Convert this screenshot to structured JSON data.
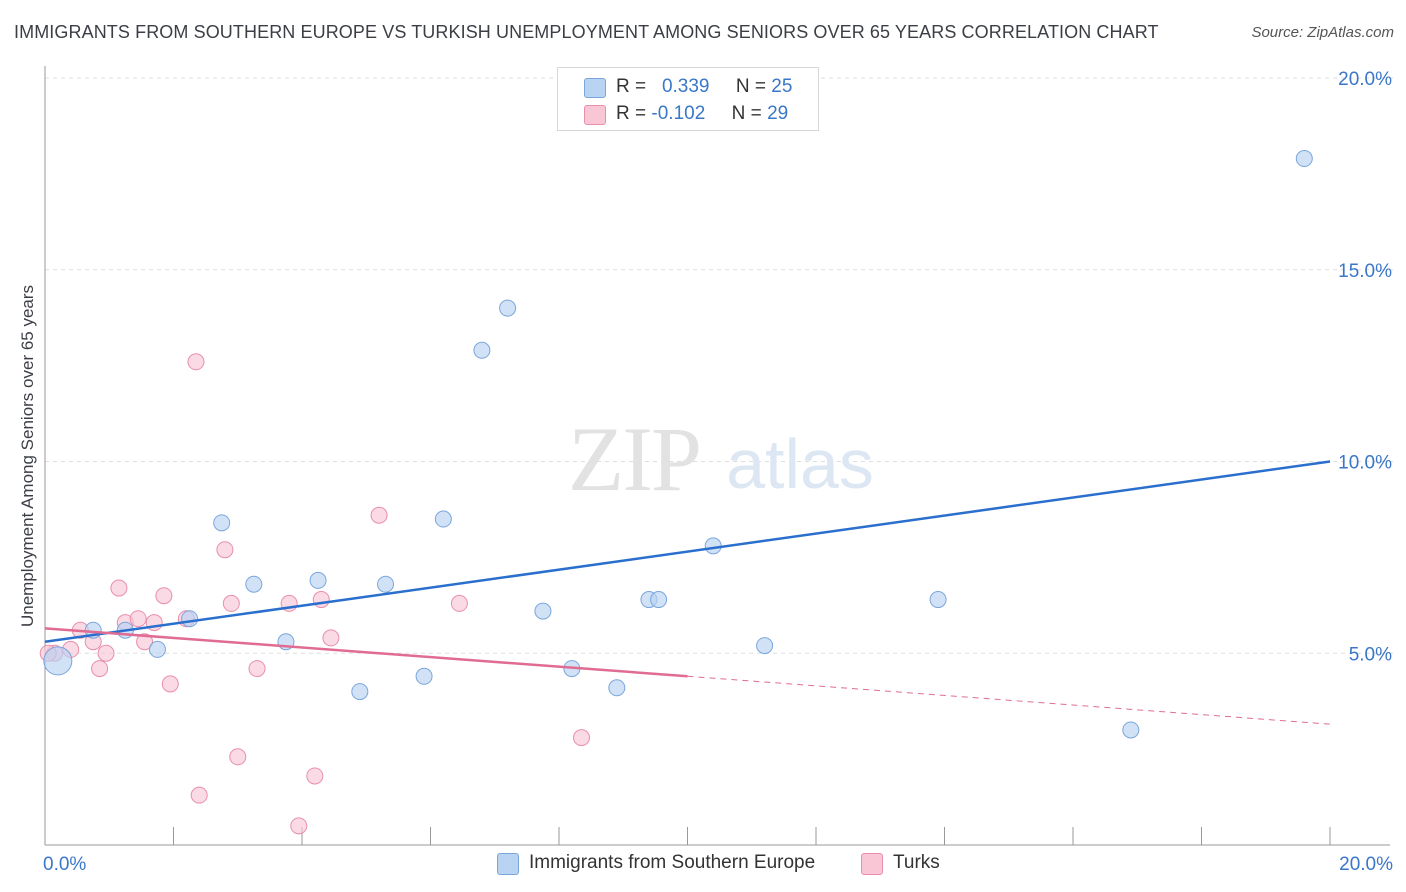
{
  "title": "IMMIGRANTS FROM SOUTHERN EUROPE VS TURKISH UNEMPLOYMENT AMONG SENIORS OVER 65 YEARS CORRELATION CHART",
  "source": "Source: ZipAtlas.com",
  "watermark": {
    "zip": "ZIP",
    "atlas": "atlas"
  },
  "legend": {
    "rows": [
      {
        "r_label": "R =",
        "r_value": "0.339",
        "n_label": "N =",
        "n_value": "25"
      },
      {
        "r_label": "R =",
        "r_value": "-0.102",
        "n_label": "N =",
        "n_value": "29"
      }
    ]
  },
  "bottom_legend": {
    "series1": "Immigrants from Southern Europe",
    "series2": "Turks"
  },
  "colors": {
    "blue_fill": "#b9d3f2",
    "blue_stroke": "#7aa6dc",
    "blue_line": "#2a6fcd",
    "pink_fill": "#f8c6d5",
    "pink_stroke": "#e98fab",
    "pink_line": "#e06c92",
    "tick_text": "#3a77c8",
    "grid": "#dddddd"
  },
  "chart_data": {
    "type": "scatter",
    "title": "IMMIGRANTS FROM SOUTHERN EUROPE VS TURKISH UNEMPLOYMENT AMONG SENIORS OVER 65 YEARS CORRELATION CHART",
    "xlabel": "",
    "ylabel": "Unemployment Among Seniors over 65 years",
    "xlim": [
      0,
      20
    ],
    "ylim": [
      0,
      20
    ],
    "x_tick_labels": [
      "0.0%",
      "20.0%"
    ],
    "y_ticks": [
      5,
      10,
      15,
      20
    ],
    "y_tick_labels": [
      "5.0%",
      "10.0%",
      "15.0%",
      "20.0%"
    ],
    "series": [
      {
        "name": "Immigrants from Southern Europe",
        "points": [
          {
            "x": 0.2,
            "y": 4.8,
            "big": true
          },
          {
            "x": 0.75,
            "y": 5.6
          },
          {
            "x": 1.25,
            "y": 5.6
          },
          {
            "x": 1.75,
            "y": 5.1
          },
          {
            "x": 2.25,
            "y": 5.9
          },
          {
            "x": 2.75,
            "y": 8.4
          },
          {
            "x": 3.25,
            "y": 6.8
          },
          {
            "x": 3.75,
            "y": 5.3
          },
          {
            "x": 4.25,
            "y": 6.9
          },
          {
            "x": 4.9,
            "y": 4.0
          },
          {
            "x": 5.3,
            "y": 6.8
          },
          {
            "x": 5.9,
            "y": 4.4
          },
          {
            "x": 6.2,
            "y": 8.5
          },
          {
            "x": 6.8,
            "y": 12.9
          },
          {
            "x": 7.2,
            "y": 14.0
          },
          {
            "x": 7.75,
            "y": 6.1
          },
          {
            "x": 8.2,
            "y": 4.6
          },
          {
            "x": 8.9,
            "y": 4.1
          },
          {
            "x": 9.4,
            "y": 6.4
          },
          {
            "x": 9.55,
            "y": 6.4
          },
          {
            "x": 10.4,
            "y": 7.8
          },
          {
            "x": 11.2,
            "y": 5.2
          },
          {
            "x": 13.9,
            "y": 6.4
          },
          {
            "x": 16.9,
            "y": 3.0
          },
          {
            "x": 19.6,
            "y": 17.9
          }
        ],
        "trend": {
          "x0": 0,
          "y0": 5.3,
          "x1": 20,
          "y1": 10.0
        }
      },
      {
        "name": "Turks",
        "points": [
          {
            "x": 0.15,
            "y": 5.0
          },
          {
            "x": 0.4,
            "y": 5.1
          },
          {
            "x": 0.55,
            "y": 5.6
          },
          {
            "x": 0.75,
            "y": 5.3
          },
          {
            "x": 0.85,
            "y": 4.6
          },
          {
            "x": 0.95,
            "y": 5.0
          },
          {
            "x": 1.15,
            "y": 6.7
          },
          {
            "x": 1.25,
            "y": 5.8
          },
          {
            "x": 1.45,
            "y": 5.9
          },
          {
            "x": 1.55,
            "y": 5.3
          },
          {
            "x": 1.7,
            "y": 5.8
          },
          {
            "x": 1.85,
            "y": 6.5
          },
          {
            "x": 1.95,
            "y": 4.2
          },
          {
            "x": 2.2,
            "y": 5.9
          },
          {
            "x": 2.35,
            "y": 12.6
          },
          {
            "x": 2.4,
            "y": 1.3
          },
          {
            "x": 2.8,
            "y": 7.7
          },
          {
            "x": 2.9,
            "y": 6.3
          },
          {
            "x": 3.0,
            "y": 2.3
          },
          {
            "x": 3.3,
            "y": 4.6
          },
          {
            "x": 3.8,
            "y": 6.3
          },
          {
            "x": 3.95,
            "y": 0.5
          },
          {
            "x": 4.2,
            "y": 1.8
          },
          {
            "x": 4.3,
            "y": 6.4
          },
          {
            "x": 4.45,
            "y": 5.4
          },
          {
            "x": 5.2,
            "y": 8.6
          },
          {
            "x": 6.45,
            "y": 6.3
          },
          {
            "x": 8.35,
            "y": 2.8
          },
          {
            "x": 0.05,
            "y": 5.0
          }
        ],
        "trend": {
          "x0": 0,
          "y0": 5.65,
          "x1": 10,
          "y1": 4.4
        },
        "trend_dashed_extension": {
          "x0": 10,
          "y0": 4.4,
          "x1": 20,
          "y1": 3.15
        }
      }
    ]
  }
}
